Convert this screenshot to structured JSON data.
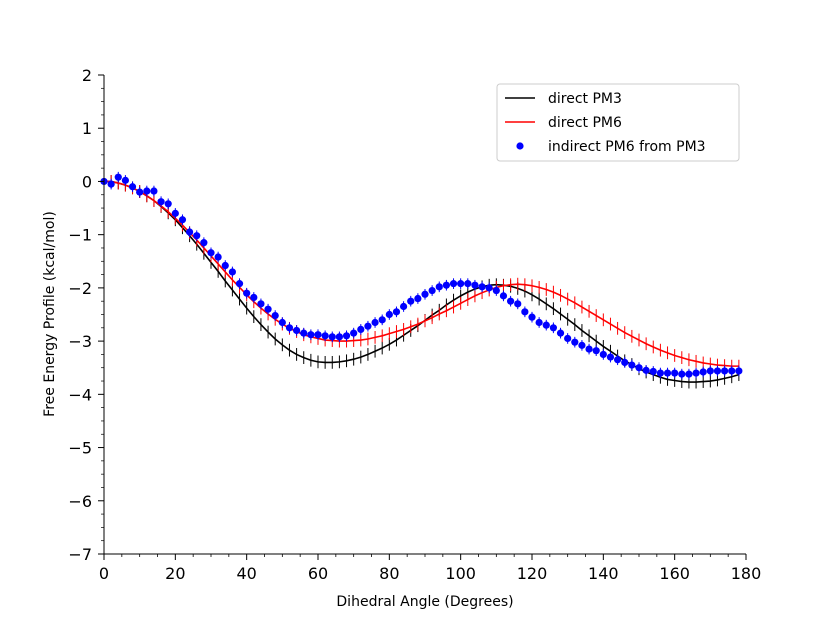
{
  "chart_data": {
    "type": "line",
    "title": "",
    "xlabel": "Dihedral Angle (Degrees)",
    "ylabel": "Free Energy Profile (kcal/mol)",
    "xlim": [
      0,
      180
    ],
    "ylim": [
      -7,
      2
    ],
    "x_ticks": [
      0,
      20,
      40,
      60,
      80,
      100,
      120,
      140,
      160,
      180
    ],
    "y_ticks": [
      2,
      1,
      0,
      -1,
      -2,
      -3,
      -4,
      -5,
      -6,
      -7
    ],
    "x_tick_labels": [
      "0",
      "20",
      "40",
      "60",
      "80",
      "100",
      "120",
      "140",
      "160",
      "180"
    ],
    "y_tick_labels": [
      "2",
      "1",
      "0",
      "−1",
      "−2",
      "−3",
      "−4",
      "−5",
      "−6",
      "−7"
    ],
    "grid": false,
    "legend_position": "top-right",
    "x": [
      0,
      2,
      4,
      6,
      8,
      10,
      12,
      14,
      16,
      18,
      20,
      22,
      24,
      26,
      28,
      30,
      32,
      34,
      36,
      38,
      40,
      42,
      44,
      46,
      48,
      50,
      52,
      54,
      56,
      58,
      60,
      62,
      64,
      66,
      68,
      70,
      72,
      74,
      76,
      78,
      80,
      82,
      84,
      86,
      88,
      90,
      92,
      94,
      96,
      98,
      100,
      102,
      104,
      106,
      108,
      110,
      112,
      114,
      116,
      118,
      120,
      122,
      124,
      126,
      128,
      130,
      132,
      134,
      136,
      138,
      140,
      142,
      144,
      146,
      148,
      150,
      152,
      154,
      156,
      158,
      160,
      162,
      164,
      166,
      168,
      170,
      172,
      174,
      176,
      178
    ],
    "series": [
      {
        "name": "direct PM3",
        "style": "line-errorbar",
        "color": "#000000",
        "values": [
          0.0,
          0.0,
          -0.03,
          -0.07,
          -0.12,
          -0.19,
          -0.27,
          -0.36,
          -0.47,
          -0.59,
          -0.72,
          -0.87,
          -1.02,
          -1.18,
          -1.35,
          -1.52,
          -1.69,
          -1.87,
          -2.04,
          -2.21,
          -2.38,
          -2.54,
          -2.69,
          -2.83,
          -2.96,
          -3.07,
          -3.17,
          -3.25,
          -3.31,
          -3.36,
          -3.39,
          -3.4,
          -3.4,
          -3.39,
          -3.37,
          -3.34,
          -3.3,
          -3.25,
          -3.19,
          -3.13,
          -3.06,
          -2.98,
          -2.89,
          -2.8,
          -2.71,
          -2.61,
          -2.51,
          -2.42,
          -2.32,
          -2.23,
          -2.15,
          -2.08,
          -2.02,
          -1.98,
          -1.95,
          -1.94,
          -1.95,
          -1.97,
          -2.01,
          -2.06,
          -2.13,
          -2.21,
          -2.3,
          -2.39,
          -2.49,
          -2.59,
          -2.69,
          -2.8,
          -2.9,
          -3.0,
          -3.1,
          -3.19,
          -3.28,
          -3.37,
          -3.44,
          -3.52,
          -3.58,
          -3.63,
          -3.68,
          -3.72,
          -3.74,
          -3.76,
          -3.77,
          -3.77,
          -3.76,
          -3.75,
          -3.73,
          -3.7,
          -3.67,
          -3.63
        ]
      },
      {
        "name": "direct PM6",
        "style": "line-errorbar",
        "color": "#ff0000",
        "values": [
          0.0,
          0.0,
          -0.03,
          -0.07,
          -0.12,
          -0.19,
          -0.27,
          -0.36,
          -0.46,
          -0.57,
          -0.69,
          -0.82,
          -0.96,
          -1.1,
          -1.25,
          -1.4,
          -1.55,
          -1.7,
          -1.85,
          -1.99,
          -2.13,
          -2.26,
          -2.38,
          -2.49,
          -2.59,
          -2.68,
          -2.76,
          -2.82,
          -2.88,
          -2.92,
          -2.95,
          -2.98,
          -2.99,
          -3.0,
          -3.0,
          -2.99,
          -2.98,
          -2.96,
          -2.93,
          -2.9,
          -2.86,
          -2.82,
          -2.78,
          -2.73,
          -2.68,
          -2.62,
          -2.56,
          -2.49,
          -2.43,
          -2.36,
          -2.29,
          -2.22,
          -2.15,
          -2.09,
          -2.04,
          -1.99,
          -1.96,
          -1.94,
          -1.93,
          -1.94,
          -1.96,
          -1.99,
          -2.03,
          -2.08,
          -2.14,
          -2.21,
          -2.28,
          -2.36,
          -2.44,
          -2.52,
          -2.6,
          -2.68,
          -2.76,
          -2.84,
          -2.91,
          -2.98,
          -3.05,
          -3.11,
          -3.17,
          -3.22,
          -3.27,
          -3.31,
          -3.35,
          -3.38,
          -3.41,
          -3.43,
          -3.45,
          -3.46,
          -3.47,
          -3.47
        ]
      },
      {
        "name": "indirect PM6 from PM3",
        "style": "scatter-errorbar",
        "color": "#0000ff",
        "values": [
          0.0,
          -0.05,
          0.08,
          0.02,
          -0.1,
          -0.2,
          -0.18,
          -0.18,
          -0.38,
          -0.42,
          -0.6,
          -0.72,
          -0.95,
          -1.02,
          -1.15,
          -1.34,
          -1.42,
          -1.58,
          -1.7,
          -1.92,
          -2.1,
          -2.18,
          -2.3,
          -2.4,
          -2.52,
          -2.65,
          -2.75,
          -2.8,
          -2.85,
          -2.88,
          -2.88,
          -2.9,
          -2.92,
          -2.92,
          -2.9,
          -2.85,
          -2.78,
          -2.72,
          -2.65,
          -2.6,
          -2.5,
          -2.45,
          -2.35,
          -2.25,
          -2.2,
          -2.12,
          -2.05,
          -1.98,
          -1.95,
          -1.92,
          -1.92,
          -1.92,
          -1.95,
          -1.98,
          -2.0,
          -2.05,
          -2.15,
          -2.25,
          -2.3,
          -2.45,
          -2.55,
          -2.65,
          -2.7,
          -2.75,
          -2.85,
          -2.95,
          -3.02,
          -3.08,
          -3.15,
          -3.18,
          -3.25,
          -3.3,
          -3.35,
          -3.4,
          -3.45,
          -3.5,
          -3.55,
          -3.57,
          -3.6,
          -3.6,
          -3.6,
          -3.62,
          -3.62,
          -3.6,
          -3.58,
          -3.56,
          -3.56,
          -3.56,
          -3.56,
          -3.56
        ]
      }
    ]
  }
}
